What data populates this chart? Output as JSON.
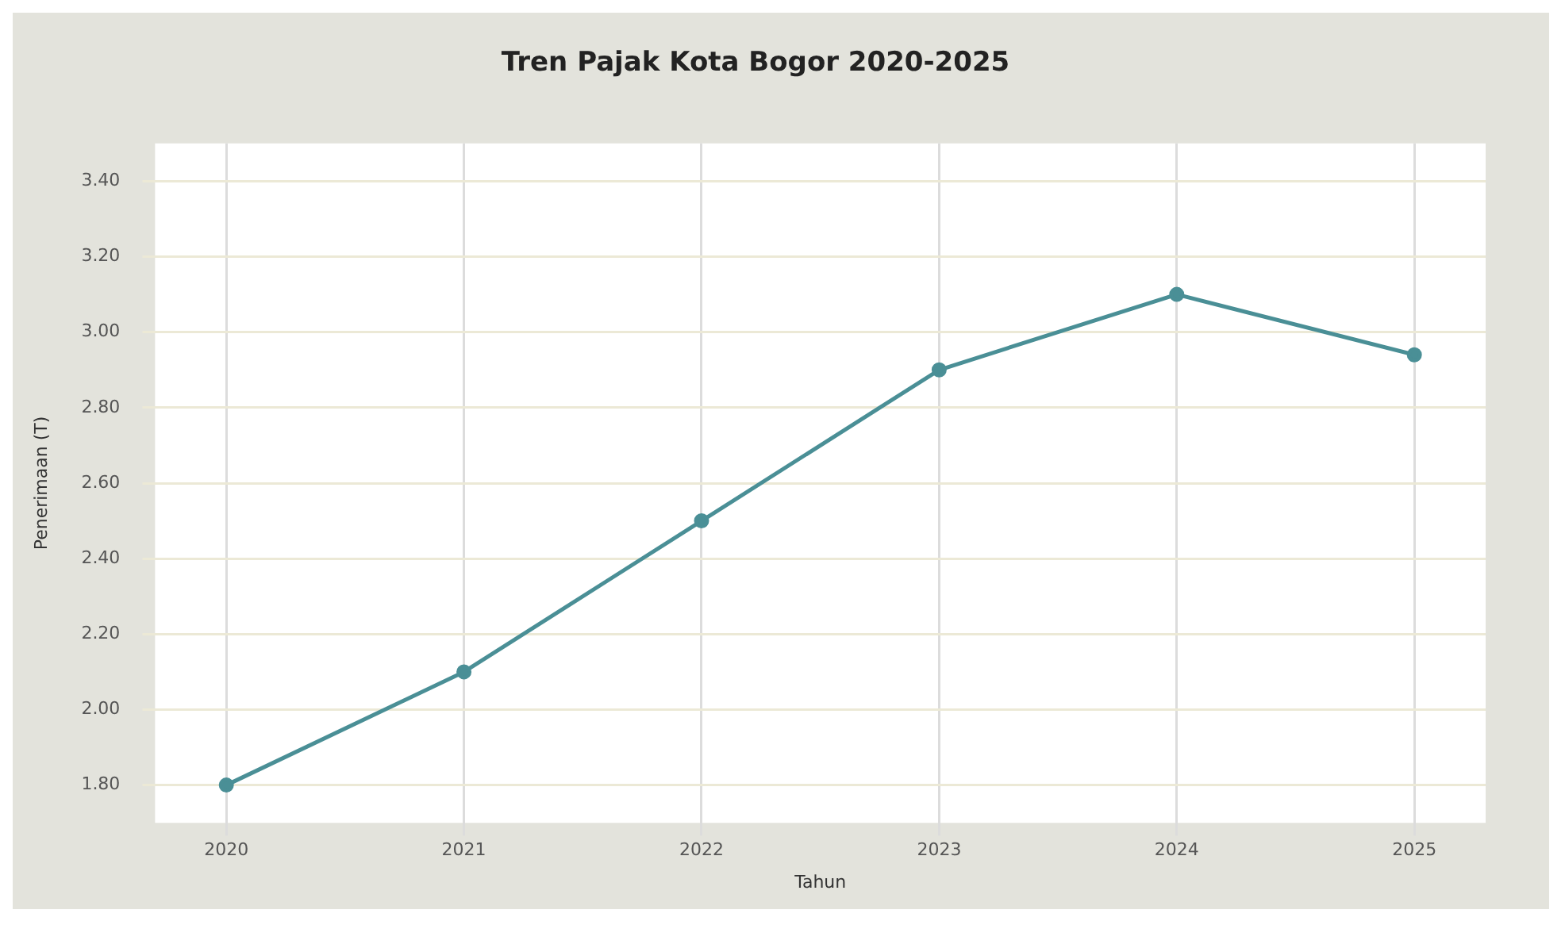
{
  "chart_data": {
    "type": "line",
    "title": "Tren Pajak Kota Bogor 2020-2025",
    "xlabel": "Tahun",
    "ylabel": "Penerimaan (T)",
    "x": [
      2020,
      2021,
      2022,
      2023,
      2024,
      2025
    ],
    "series": [
      {
        "color": "#4a8f96",
        "values": [
          1.8,
          2.1,
          2.5,
          2.9,
          3.1,
          2.94
        ]
      }
    ],
    "xlim": [
      2019.7,
      2025.3
    ],
    "xticks": [
      2020,
      2021,
      2022,
      2023,
      2024,
      2025
    ],
    "ylim": [
      1.7,
      3.5
    ],
    "yticks": [
      {
        "value": 1.8,
        "label": "1.80"
      },
      {
        "value": 2.0,
        "label": "2.00"
      },
      {
        "value": 2.2,
        "label": "2.20"
      },
      {
        "value": 2.4,
        "label": "2.40"
      },
      {
        "value": 2.6,
        "label": "2.60"
      },
      {
        "value": 2.8,
        "label": "2.80"
      },
      {
        "value": 3.0,
        "label": "3.00"
      },
      {
        "value": 3.2,
        "label": "3.20"
      },
      {
        "value": 3.4,
        "label": "3.40"
      }
    ],
    "grid": true,
    "marker": "circle",
    "line_style": "solid"
  }
}
